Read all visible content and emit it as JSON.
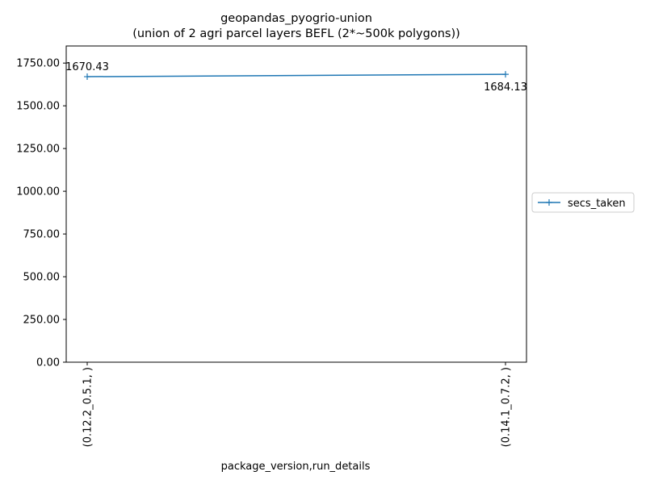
{
  "chart_data": {
    "type": "line",
    "title_line1": "geopandas_pyogrio-union",
    "title_line2": "(union of 2 agri parcel layers BEFL (2*~500k polygons))",
    "xlabel": "package_version,run_details",
    "ylabel": "",
    "categories": [
      "(0.12.2_0.5.1, )",
      "(0.14.1_0.7.2, )"
    ],
    "series": [
      {
        "name": "secs_taken",
        "values": [
          1670.43,
          1684.13
        ],
        "color": "#1f77b4",
        "marker": "+"
      }
    ],
    "data_labels": [
      "1670.43",
      "1684.13"
    ],
    "y_ticks": [
      "0.00",
      "250.00",
      "500.00",
      "750.00",
      "1000.00",
      "1250.00",
      "1500.00",
      "1750.00"
    ],
    "ylim": [
      0,
      1850
    ],
    "grid": false,
    "legend_position": "right-outside"
  }
}
